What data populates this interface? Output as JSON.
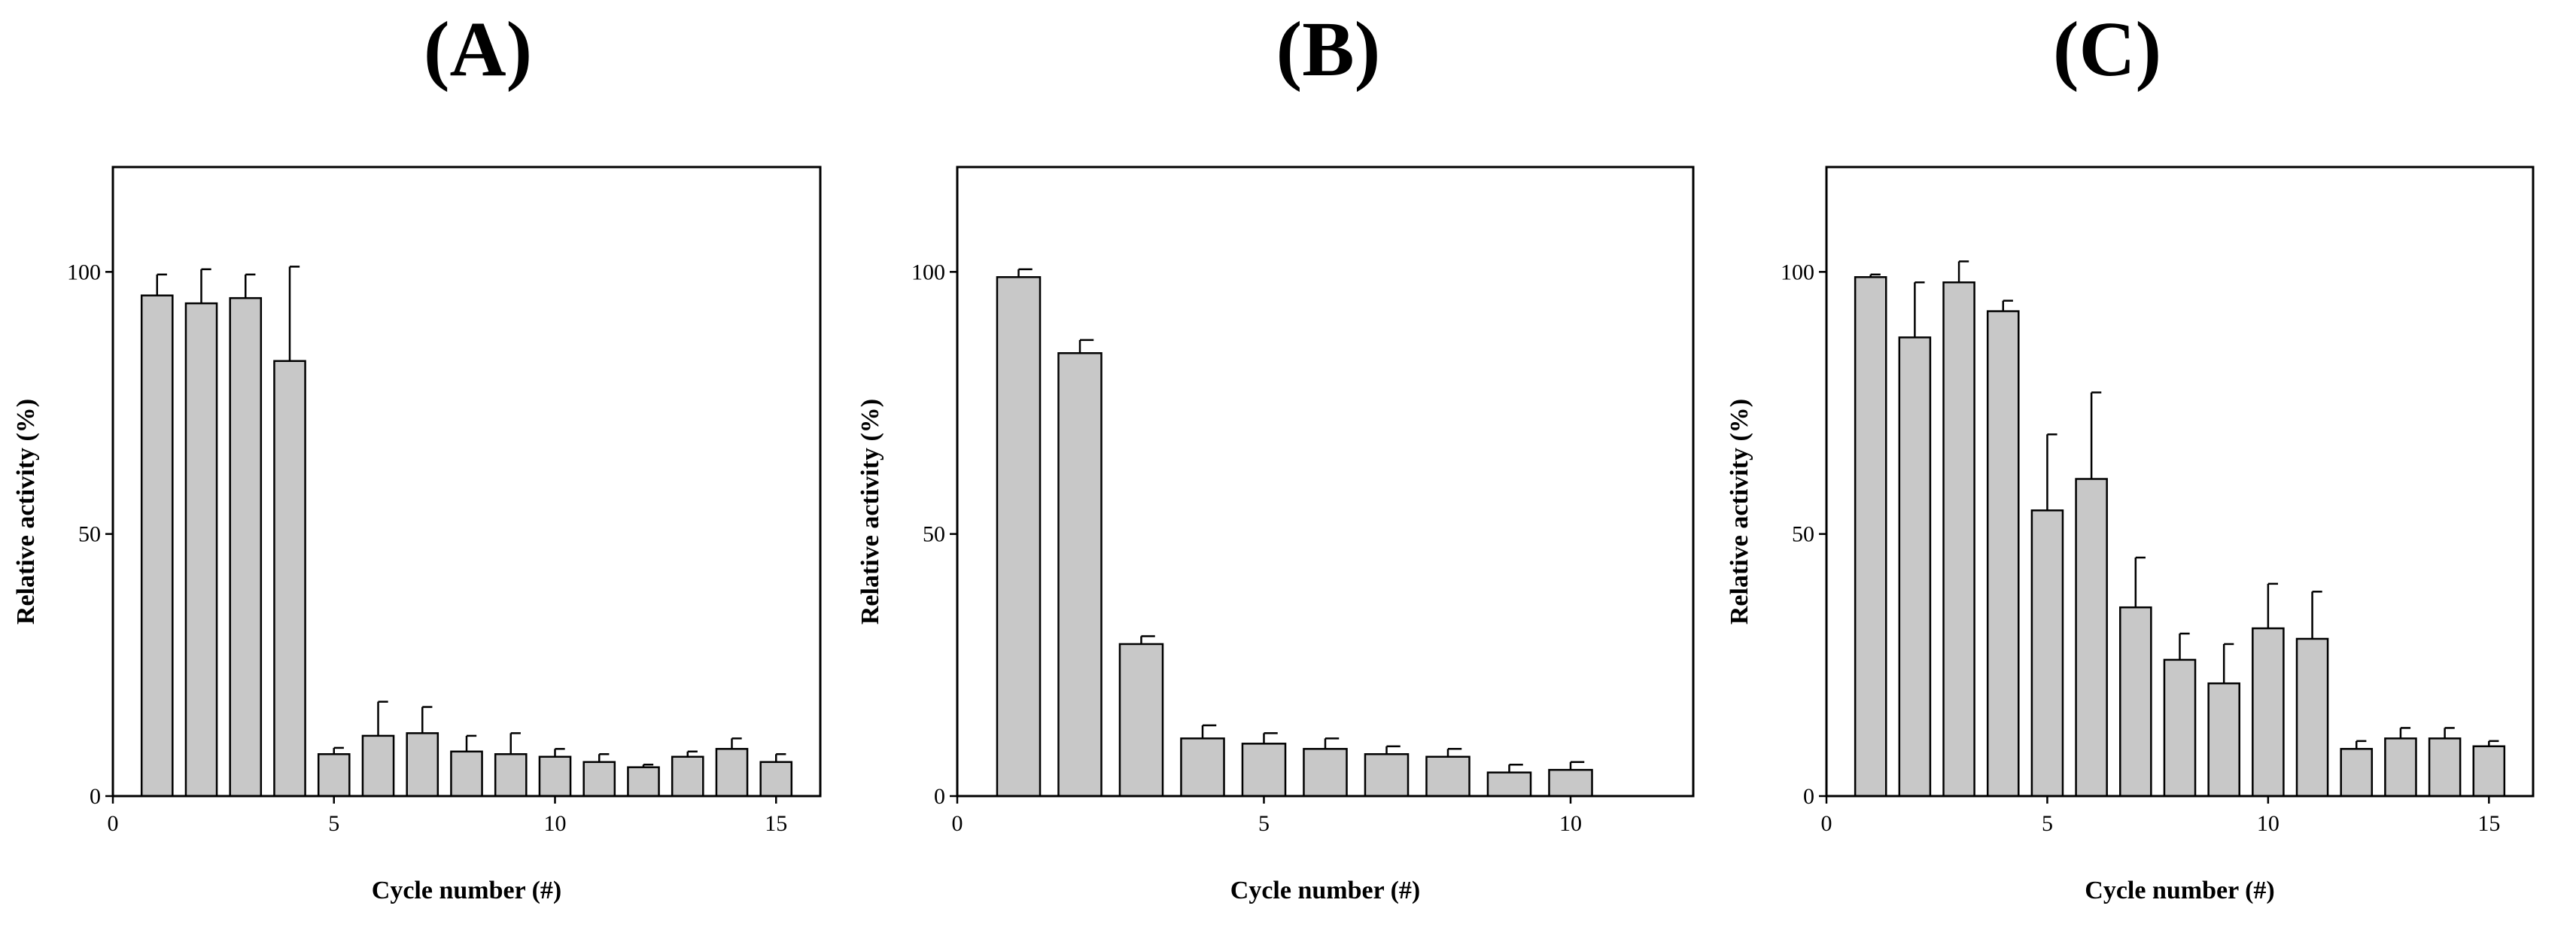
{
  "colors": {
    "bar_fill": "#c8c8c8",
    "bar_stroke": "#000000",
    "axis": "#000000",
    "background": "#ffffff"
  },
  "chart_data": [
    {
      "type": "bar",
      "title": "(A)",
      "xlabel": "Cycle number (#)",
      "ylabel": "Relative activity (%)",
      "xlim": [
        0,
        16
      ],
      "ylim": [
        0,
        120
      ],
      "xticks": [
        0,
        5,
        10,
        15
      ],
      "yticks": [
        0,
        50,
        100
      ],
      "x": [
        1,
        2,
        3,
        4,
        5,
        6,
        7,
        8,
        9,
        10,
        11,
        12,
        13,
        14,
        15
      ],
      "values": [
        95.5,
        94.0,
        95.0,
        83.0,
        8.0,
        11.5,
        12.0,
        8.5,
        8.0,
        7.5,
        6.5,
        5.5,
        7.5,
        9.0,
        6.5
      ],
      "errors": [
        4.0,
        6.5,
        4.5,
        18.0,
        1.2,
        6.5,
        5.0,
        3.0,
        4.0,
        1.5,
        1.5,
        0.5,
        1.0,
        2.0,
        1.5
      ]
    },
    {
      "type": "bar",
      "title": "(B)",
      "xlabel": "Cycle number (#)",
      "ylabel": "Relative activity (%)",
      "xlim": [
        0,
        12
      ],
      "ylim": [
        0,
        120
      ],
      "xticks": [
        0,
        5,
        10
      ],
      "yticks": [
        0,
        50,
        100
      ],
      "x": [
        1,
        2,
        3,
        4,
        5,
        6,
        7,
        8,
        9,
        10
      ],
      "values": [
        99.0,
        84.5,
        29.0,
        11.0,
        10.0,
        9.0,
        8.0,
        7.5,
        4.5,
        5.0
      ],
      "errors": [
        1.5,
        2.5,
        1.5,
        2.5,
        2.0,
        2.0,
        1.5,
        1.5,
        1.5,
        1.5
      ]
    },
    {
      "type": "bar",
      "title": "(C)",
      "xlabel": "Cycle number (#)",
      "ylabel": "Relative activity (%)",
      "xlim": [
        0,
        16
      ],
      "ylim": [
        0,
        120
      ],
      "xticks": [
        0,
        5,
        10,
        15
      ],
      "yticks": [
        0,
        50,
        100
      ],
      "x": [
        1,
        2,
        3,
        4,
        5,
        6,
        7,
        8,
        9,
        10,
        11,
        12,
        13,
        14,
        15
      ],
      "values": [
        99.0,
        87.5,
        98.0,
        92.5,
        54.5,
        60.5,
        36.0,
        26.0,
        21.5,
        32.0,
        30.0,
        9.0,
        11.0,
        11.0,
        9.5
      ],
      "errors": [
        0.5,
        10.5,
        4.0,
        2.0,
        14.5,
        16.5,
        9.5,
        5.0,
        7.5,
        8.5,
        9.0,
        1.5,
        2.0,
        2.0,
        1.0
      ]
    }
  ]
}
